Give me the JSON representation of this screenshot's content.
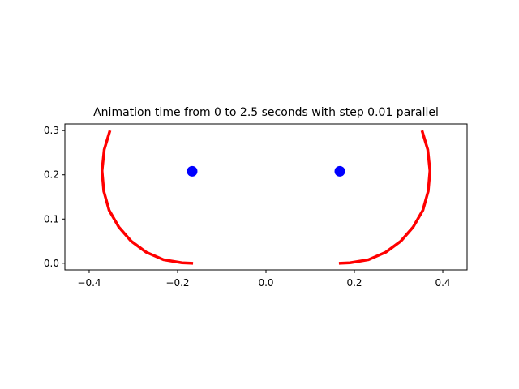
{
  "chart_data": {
    "type": "line",
    "title": "Animation time from 0 to 2.5 seconds with step 0.01 parallel",
    "xlabel": "",
    "ylabel": "",
    "xlim": [
      -0.455,
      0.455
    ],
    "ylim": [
      -0.015,
      0.315
    ],
    "grid": false,
    "x_ticks": [
      -0.4,
      -0.2,
      0.0,
      0.2,
      0.4
    ],
    "x_tick_labels": [
      "−0.4",
      "−0.2",
      "0.0",
      "0.2",
      "0.4"
    ],
    "y_ticks": [
      0.0,
      0.1,
      0.2,
      0.3
    ],
    "y_tick_labels": [
      "0.0",
      "0.1",
      "0.2",
      "0.3"
    ],
    "series": [
      {
        "kind": "line",
        "color": "#ff0000",
        "points": [
          [
            -0.353,
            0.3
          ],
          [
            -0.366,
            0.257
          ],
          [
            -0.371,
            0.209
          ],
          [
            -0.367,
            0.163
          ],
          [
            -0.355,
            0.12
          ],
          [
            -0.333,
            0.082
          ],
          [
            -0.305,
            0.05
          ],
          [
            -0.271,
            0.025
          ],
          [
            -0.232,
            0.008
          ],
          [
            -0.19,
            0.001
          ],
          [
            -0.165,
            0.0
          ]
        ]
      },
      {
        "kind": "line",
        "color": "#ff0000",
        "points": [
          [
            0.165,
            0.0
          ],
          [
            0.19,
            0.001
          ],
          [
            0.232,
            0.008
          ],
          [
            0.271,
            0.025
          ],
          [
            0.305,
            0.05
          ],
          [
            0.333,
            0.082
          ],
          [
            0.355,
            0.12
          ],
          [
            0.367,
            0.163
          ],
          [
            0.371,
            0.209
          ],
          [
            0.366,
            0.257
          ],
          [
            0.353,
            0.3
          ]
        ]
      },
      {
        "kind": "scatter",
        "color": "#0000ff",
        "points": [
          [
            -0.167,
            0.208
          ],
          [
            0.167,
            0.208
          ]
        ]
      }
    ]
  }
}
